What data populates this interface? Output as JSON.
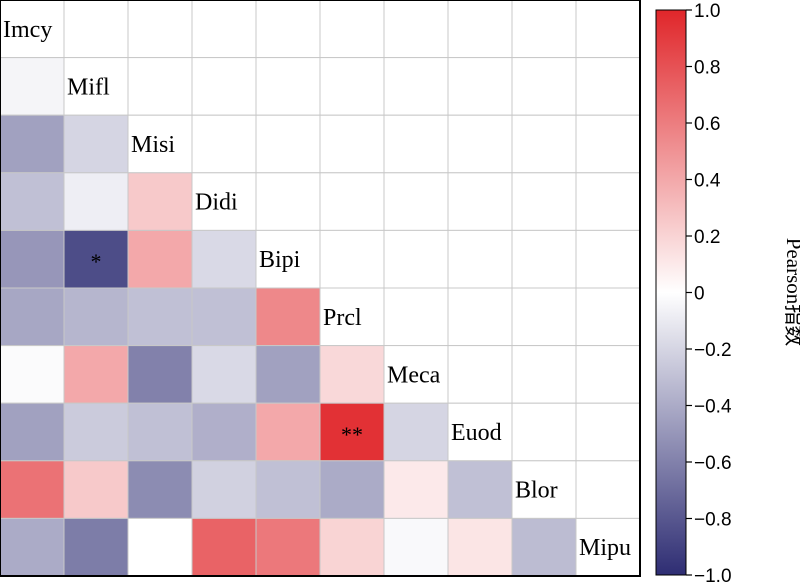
{
  "chart_data": {
    "type": "heatmap",
    "variables": [
      "Imcy",
      "Mifl",
      "Misi",
      "Didi",
      "Bipi",
      "Prcl",
      "Meca",
      "Euod",
      "Blor",
      "Mipu"
    ],
    "matrix_lower": [
      [],
      [
        -0.05
      ],
      [
        -0.45,
        -0.2
      ],
      [
        -0.3,
        -0.08,
        0.25
      ],
      [
        -0.5,
        -0.85,
        0.4,
        -0.18
      ],
      [
        -0.42,
        -0.35,
        -0.3,
        -0.3,
        0.55
      ],
      [
        -0.02,
        0.4,
        -0.6,
        -0.18,
        -0.45,
        0.18
      ],
      [
        -0.45,
        -0.25,
        -0.3,
        -0.38,
        0.4,
        0.95,
        -0.2
      ],
      [
        0.65,
        0.25,
        -0.55,
        -0.22,
        -0.3,
        -0.4,
        0.1,
        -0.3
      ],
      [
        -0.4,
        -0.62,
        0.0,
        0.72,
        0.62,
        0.2,
        -0.03,
        0.12,
        -0.32
      ]
    ],
    "significance": [
      {
        "row": 4,
        "col": 1,
        "label": "*"
      },
      {
        "row": 7,
        "col": 5,
        "label": "**"
      }
    ],
    "colorbar": {
      "label": "Pearson指数",
      "range": [
        -1.0,
        1.0
      ],
      "ticks": [
        "1.0",
        "0.8",
        "0.6",
        "0.4",
        "0.2",
        "0",
        "−0.2",
        "−0.4",
        "−0.6",
        "−0.8",
        "−1.0"
      ],
      "low_color": "#2e2d73",
      "mid_color": "#ffffff",
      "high_color": "#e0262a"
    },
    "grid": true
  }
}
